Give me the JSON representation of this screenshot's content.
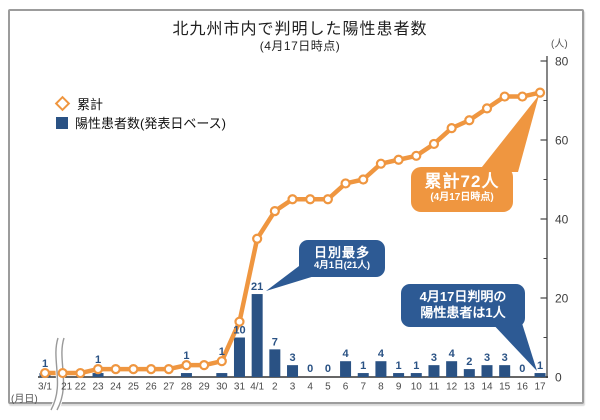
{
  "title": "北九州市内で判明した陽性患者数",
  "subtitle": "(4月17日時点)",
  "axes": {
    "unit": "(人)",
    "monthday": "(月日)",
    "yticks": [
      0,
      20,
      40,
      60,
      80
    ],
    "yticks_minor": [
      10,
      30,
      50,
      70
    ]
  },
  "legend": {
    "cumulative": "累計",
    "daily": "陽性患者数(発表日ベース)"
  },
  "chart_data": {
    "type": "bar",
    "title": "北九州市内で判明した陽性患者数 (4月17日時点)",
    "xlabel": "(月日)",
    "ylabel": "(人)",
    "ylim": [
      0,
      80
    ],
    "x_axis_break_after_index": 0,
    "categories": [
      "3/1",
      "21",
      "22",
      "23",
      "24",
      "25",
      "26",
      "27",
      "28",
      "29",
      "30",
      "31",
      "4/1",
      "2",
      "3",
      "4",
      "5",
      "6",
      "7",
      "8",
      "9",
      "10",
      "11",
      "12",
      "13",
      "14",
      "15",
      "16",
      "17"
    ],
    "series": [
      {
        "name": "陽性患者数(発表日ベース)",
        "type": "bar",
        "values": [
          1,
          0,
          0,
          1,
          0,
          0,
          0,
          0,
          1,
          0,
          1,
          10,
          21,
          7,
          3,
          0,
          0,
          4,
          1,
          4,
          1,
          1,
          3,
          4,
          2,
          3,
          3,
          0,
          1
        ]
      },
      {
        "name": "累計",
        "type": "line",
        "values": [
          1,
          1,
          1,
          2,
          2,
          2,
          2,
          2,
          3,
          3,
          4,
          14,
          35,
          42,
          45,
          45,
          45,
          49,
          50,
          54,
          55,
          56,
          59,
          63,
          65,
          68,
          71,
          71,
          72
        ]
      }
    ]
  },
  "annotations": {
    "total": {
      "line1": "累計72人",
      "line2": "(4月17日時点)"
    },
    "daily_max": {
      "line1": "日別最多",
      "line2": "4月1日(21人)"
    },
    "latest": {
      "line1": "4月17日判明の",
      "line2": "陽性患者は1人"
    }
  },
  "colors": {
    "orange": "#EF9640",
    "navy": "#2A5284",
    "callout_blue": "#2D5A94",
    "axis": "#444444",
    "tick_text": "#4a4a4a"
  }
}
